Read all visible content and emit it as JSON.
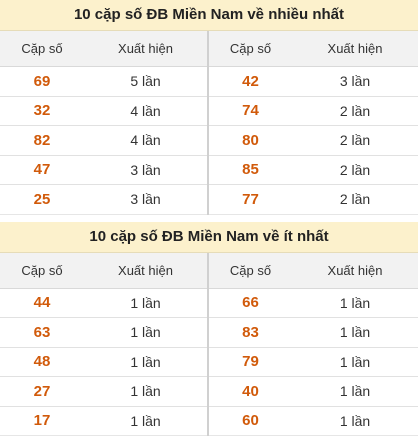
{
  "section1": {
    "title": "10 cặp số ĐB Miền Nam về nhiều nhất",
    "headers": {
      "pair": "Cặp số",
      "count": "Xuất hiện"
    },
    "rows": [
      {
        "left_pair": "69",
        "left_count": "5 lần",
        "right_pair": "42",
        "right_count": "3 lần"
      },
      {
        "left_pair": "32",
        "left_count": "4 lần",
        "right_pair": "74",
        "right_count": "2 lần"
      },
      {
        "left_pair": "82",
        "left_count": "4 lần",
        "right_pair": "80",
        "right_count": "2 lần"
      },
      {
        "left_pair": "47",
        "left_count": "3 lần",
        "right_pair": "85",
        "right_count": "2 lần"
      },
      {
        "left_pair": "25",
        "left_count": "3 lần",
        "right_pair": "77",
        "right_count": "2 lần"
      }
    ]
  },
  "section2": {
    "title": "10 cặp số ĐB Miền Nam về ít nhất",
    "headers": {
      "pair": "Cặp số",
      "count": "Xuất hiện"
    },
    "rows": [
      {
        "left_pair": "44",
        "left_count": "1 lần",
        "right_pair": "66",
        "right_count": "1 lần"
      },
      {
        "left_pair": "63",
        "left_count": "1 lần",
        "right_pair": "83",
        "right_count": "1 lần"
      },
      {
        "left_pair": "48",
        "left_count": "1 lần",
        "right_pair": "79",
        "right_count": "1 lần"
      },
      {
        "left_pair": "27",
        "left_count": "1 lần",
        "right_pair": "40",
        "right_count": "1 lần"
      },
      {
        "left_pair": "17",
        "left_count": "1 lần",
        "right_pair": "60",
        "right_count": "1 lần"
      }
    ]
  },
  "colors": {
    "title_bg": "#fcf1cc",
    "header_bg": "#f2f2f2",
    "number": "#d15a0a"
  }
}
